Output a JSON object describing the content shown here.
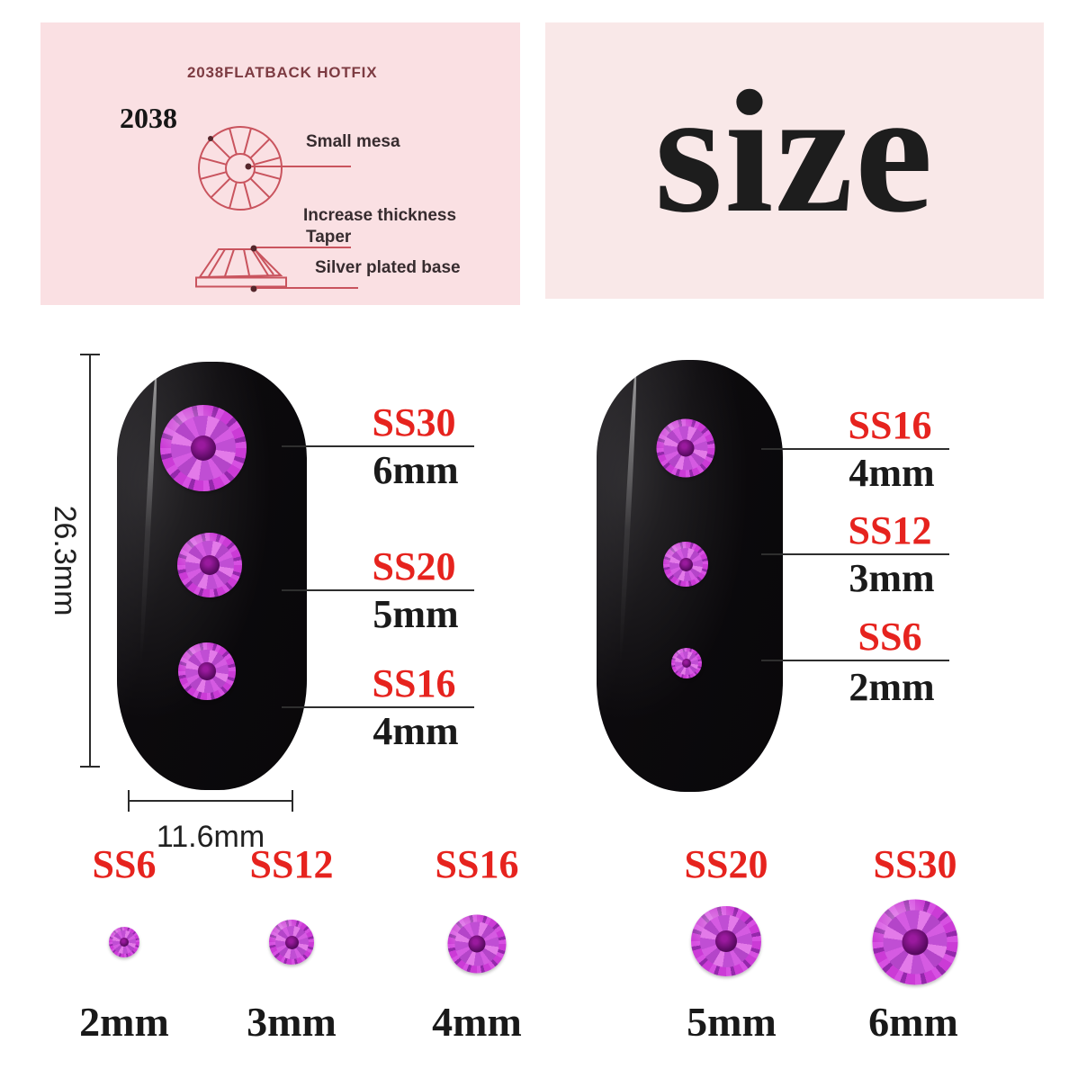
{
  "spec_box": {
    "title": "2038FLATBACK HOTFIX",
    "model": "2038",
    "callouts": {
      "small_mesa": "Small mesa",
      "increase_thickness": "Increase thickness",
      "taper": "Taper",
      "silver_base": "Silver plated base"
    }
  },
  "size_box": {
    "title": "size"
  },
  "left_nail": {
    "height_label": "26.3mm",
    "width_label": "11.6mm",
    "annotations": [
      {
        "size": "SS30",
        "mm": "6mm"
      },
      {
        "size": "SS20",
        "mm": "5mm"
      },
      {
        "size": "SS16",
        "mm": "4mm"
      }
    ]
  },
  "right_nail": {
    "annotations": [
      {
        "size": "SS16",
        "mm": "4mm"
      },
      {
        "size": "SS12",
        "mm": "3mm"
      },
      {
        "size": "SS6",
        "mm": "2mm"
      }
    ]
  },
  "size_chart": [
    {
      "size": "SS6",
      "mm": "2mm"
    },
    {
      "size": "SS12",
      "mm": "3mm"
    },
    {
      "size": "SS16",
      "mm": "4mm"
    },
    {
      "size": "SS20",
      "mm": "5mm"
    },
    {
      "size": "SS30",
      "mm": "6mm"
    }
  ],
  "colors": {
    "accent_red": "#e6231e",
    "diagram_red": "#c9545e",
    "spec_box_bg": "#fae0e3",
    "size_box_bg": "#f9e8e8",
    "title_maroon": "#7d3b42",
    "gem_magenta": "#c63fd2",
    "gem_center_purple": "#5a0a62",
    "nail_black": "#0c0a0d"
  }
}
